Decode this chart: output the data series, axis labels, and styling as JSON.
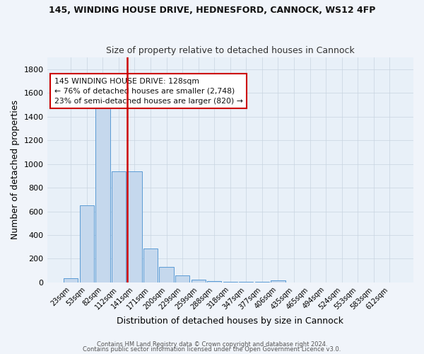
{
  "title1": "145, WINDING HOUSE DRIVE, HEDNESFORD, CANNOCK, WS12 4FP",
  "title2": "Size of property relative to detached houses in Cannock",
  "xlabel": "Distribution of detached houses by size in Cannock",
  "ylabel": "Number of detached properties",
  "categories": [
    "23sqm",
    "53sqm",
    "82sqm",
    "112sqm",
    "141sqm",
    "171sqm",
    "200sqm",
    "229sqm",
    "259sqm",
    "288sqm",
    "318sqm",
    "347sqm",
    "377sqm",
    "406sqm",
    "435sqm",
    "465sqm",
    "494sqm",
    "524sqm",
    "553sqm",
    "583sqm",
    "612sqm"
  ],
  "values": [
    38,
    650,
    1480,
    940,
    935,
    285,
    130,
    60,
    22,
    12,
    8,
    5,
    3,
    15,
    0,
    0,
    0,
    0,
    0,
    0,
    0
  ],
  "bar_color": "#c5d8ed",
  "bar_edge_color": "#5b9bd5",
  "bg_color": "#e8f0f8",
  "grid_color": "#c8d4e0",
  "vline_color": "#cc0000",
  "annotation_text": "145 WINDING HOUSE DRIVE: 128sqm\n← 76% of detached houses are smaller (2,748)\n23% of semi-detached houses are larger (820) →",
  "annotation_box_color": "#ffffff",
  "annotation_box_edge": "#cc0000",
  "footer1": "Contains HM Land Registry data © Crown copyright and database right 2024.",
  "footer2": "Contains public sector information licensed under the Open Government Licence v3.0.",
  "ylim": [
    0,
    1900
  ],
  "yticks": [
    0,
    200,
    400,
    600,
    800,
    1000,
    1200,
    1400,
    1600,
    1800
  ],
  "fig_bg": "#f0f4fa"
}
